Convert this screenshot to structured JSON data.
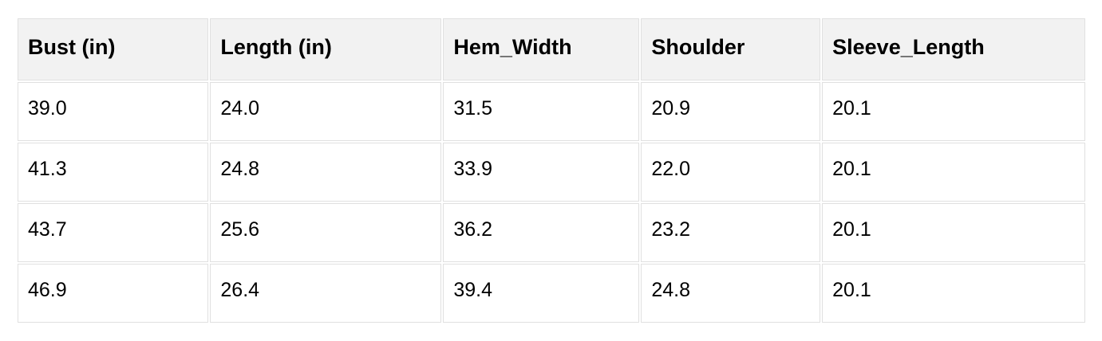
{
  "table": {
    "columns": [
      "Bust (in)",
      "Length (in)",
      "Hem_Width",
      "Shoulder",
      "Sleeve_Length"
    ],
    "rows": [
      [
        "39.0",
        "24.0",
        "31.5",
        "20.9",
        "20.1"
      ],
      [
        "41.3",
        "24.8",
        "33.9",
        "22.0",
        "20.1"
      ],
      [
        "43.7",
        "25.6",
        "36.2",
        "23.2",
        "20.1"
      ],
      [
        "46.9",
        "26.4",
        "39.4",
        "24.8",
        "20.1"
      ]
    ],
    "colors": {
      "header_bg": "#f2f2f2",
      "row_bg": "#ffffff",
      "border": "#e0e0e0",
      "text": "#000000",
      "page_bg": "#ffffff"
    }
  }
}
